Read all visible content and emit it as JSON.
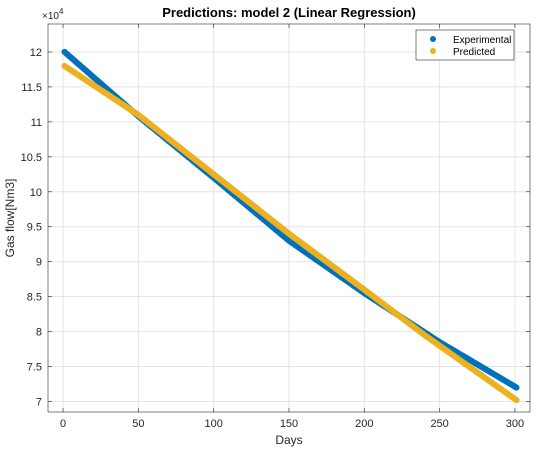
{
  "chart_data": {
    "type": "scatter",
    "title": "Predictions: model 2 (Linear Regression)",
    "xlabel": "Days",
    "ylabel": "Gas flow[Nm3]",
    "exponent_label": {
      "base": "×10",
      "power": "4"
    },
    "xlim": [
      -10,
      310
    ],
    "ylim": [
      6.85,
      12.4
    ],
    "y_scale_factor": 10000,
    "x_ticks": [
      0,
      50,
      100,
      150,
      200,
      250,
      300
    ],
    "y_ticks": [
      7,
      7.5,
      8,
      8.5,
      9,
      9.5,
      10,
      10.5,
      11,
      11.5,
      12
    ],
    "x_tick_labels": [
      "0",
      "50",
      "100",
      "150",
      "200",
      "250",
      "300"
    ],
    "y_tick_labels": [
      "7",
      "7.5",
      "8",
      "8.5",
      "9",
      "9.5",
      "10",
      "10.5",
      "11",
      "11.5",
      "12"
    ],
    "grid": true,
    "legend_position": "top-right",
    "series": [
      {
        "name": "Experimental",
        "color": "#0072bd",
        "x_range": [
          1,
          301
        ],
        "points": [
          [
            1,
            120000
          ],
          [
            50,
            110800
          ],
          [
            100,
            102000
          ],
          [
            150,
            93000
          ],
          [
            200,
            85500
          ],
          [
            250,
            78500
          ],
          [
            301,
            72000
          ]
        ]
      },
      {
        "name": "Predicted",
        "color": "#edb120",
        "x_range": [
          1,
          301
        ],
        "points": [
          [
            1,
            118000
          ],
          [
            50,
            111000
          ],
          [
            100,
            102500
          ],
          [
            150,
            94000
          ],
          [
            200,
            86000
          ],
          [
            240,
            79500
          ],
          [
            301,
            70200
          ]
        ]
      }
    ]
  }
}
